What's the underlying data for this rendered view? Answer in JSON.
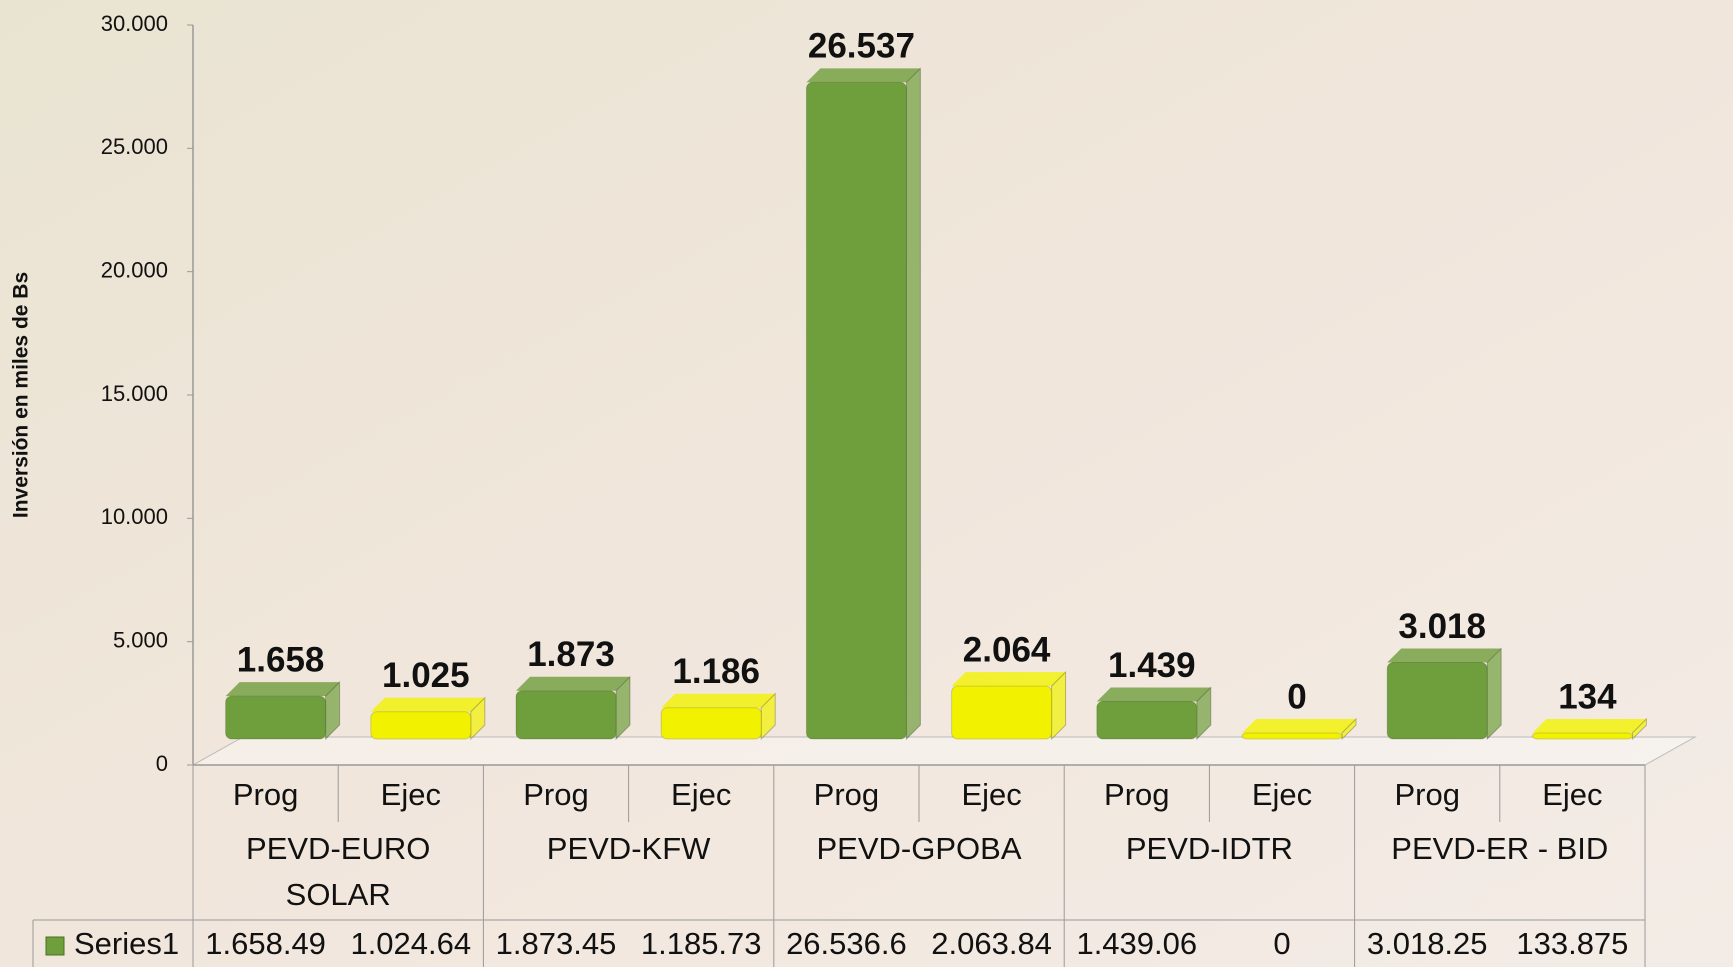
{
  "chart_data": {
    "type": "bar3d",
    "y_label": "Inversión en miles de Bs",
    "categories": [
      "Prog",
      "Ejec",
      "Prog",
      "Ejec",
      "Prog",
      "Ejec",
      "Prog",
      "Ejec",
      "Prog",
      "Ejec"
    ],
    "groups": [
      "PEVD-EURO SOLAR",
      "PEVD-KFW",
      "PEVD-GPOBA",
      "PEVD-IDTR",
      "PEVD-ER - BID"
    ],
    "series": [
      {
        "name": "Series1",
        "values": [
          1658.49,
          1024.64,
          1873.45,
          1185.73,
          26536.6,
          2063.84,
          1439.06,
          0,
          3018.25,
          133.875
        ],
        "value_labels": [
          "1.658",
          "1.025",
          "1.873",
          "1.186",
          "26.537",
          "2.064",
          "1.439",
          "0",
          "3.018",
          "134"
        ],
        "table_labels": [
          "1.658.49",
          "1.024.64",
          "1.873.45",
          "1.185.73",
          "26.536.6",
          "2.063.84",
          "1.439.06",
          "0",
          "3.018.25",
          "133.875"
        ],
        "colors": [
          "#6f9e3c",
          "#f2f200",
          "#6f9e3c",
          "#f2f200",
          "#6f9e3c",
          "#f2f200",
          "#6f9e3c",
          "#f2f200",
          "#6f9e3c",
          "#f2f200"
        ]
      }
    ],
    "ylim": [
      0,
      30000
    ],
    "yticks": [
      0,
      {
        "value": 5000,
        "label": "5.000"
      },
      {
        "value": 10000,
        "label": "10.000"
      },
      {
        "value": 15000,
        "label": "15.000"
      },
      {
        "value": 20000,
        "label": "20.000"
      },
      {
        "value": 25000,
        "label": "25.000"
      },
      {
        "value": 30000,
        "label": "30.000"
      }
    ],
    "grid": false,
    "data_table": true
  }
}
